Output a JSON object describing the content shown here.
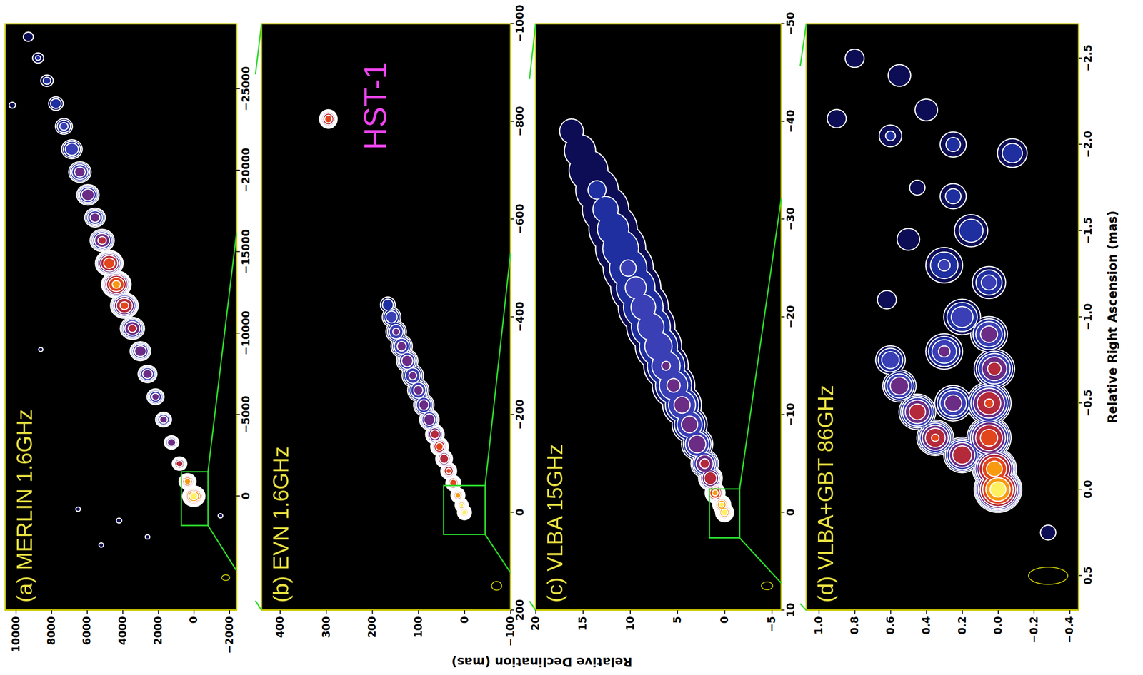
{
  "figure": {
    "xlabel": "Relative Right Ascension (mas)",
    "ylabel": "Relative Declination (mas)"
  },
  "chart_data": [
    {
      "type": "contour",
      "title": "(a) MERLIN 1.6GHz",
      "xlim": [
        7000,
        -29000
      ],
      "xticks": [
        0,
        {
          "value": -5000,
          "label": "−5000"
        },
        {
          "value": -10000,
          "label": "−10000"
        },
        {
          "value": -15000,
          "label": "−15000"
        },
        {
          "value": -20000,
          "label": "−20000"
        },
        {
          "value": -25000,
          "label": "−25000"
        }
      ],
      "ylim": [
        -2400,
        10600
      ],
      "yticks": [
        {
          "value": -2000,
          "label": "−2000"
        },
        0,
        2000,
        4000,
        6000,
        8000,
        10000
      ],
      "components": [
        [
          0,
          0,
          600,
          1.0
        ],
        [
          -900,
          350,
          450,
          0.85
        ],
        [
          -2000,
          800,
          380,
          0.55
        ],
        [
          -3300,
          1250,
          380,
          0.45
        ],
        [
          -4700,
          1700,
          420,
          0.4
        ],
        [
          -6100,
          2150,
          450,
          0.38
        ],
        [
          -7500,
          2600,
          500,
          0.42
        ],
        [
          -8900,
          3000,
          550,
          0.45
        ],
        [
          -10300,
          3450,
          650,
          0.5
        ],
        [
          -11700,
          3900,
          750,
          0.65
        ],
        [
          -13000,
          4350,
          800,
          0.8
        ],
        [
          -14300,
          4750,
          750,
          0.7
        ],
        [
          -15700,
          5150,
          650,
          0.5
        ],
        [
          -17100,
          5550,
          550,
          0.4
        ],
        [
          -18500,
          5950,
          600,
          0.45
        ],
        [
          -19900,
          6400,
          600,
          0.4
        ],
        [
          -21300,
          6850,
          550,
          0.32
        ],
        [
          -22700,
          7300,
          450,
          0.25
        ],
        [
          -24100,
          7750,
          380,
          0.2
        ],
        [
          -25500,
          8250,
          320,
          0.15
        ],
        [
          -26900,
          8750,
          280,
          0.12
        ],
        [
          -28200,
          9300,
          250,
          0.1
        ],
        [
          1500,
          4200,
          120,
          0.05
        ],
        [
          2500,
          2600,
          100,
          0.05
        ],
        [
          1200,
          -1500,
          100,
          0.05
        ],
        [
          3000,
          5200,
          100,
          0.05
        ],
        [
          800,
          6500,
          100,
          0.05
        ],
        [
          -9000,
          8600,
          90,
          0.05
        ],
        [
          -24000,
          10200,
          150,
          0.08
        ]
      ],
      "beam": [
        5000,
        -1800,
        450,
        350
      ],
      "zoom_box": [
        1800,
        -1500,
        -800,
        700
      ]
    },
    {
      "type": "contour",
      "title": "(b) EVN 1.6GHz",
      "xlim": [
        200,
        -1000
      ],
      "xticks": [
        200,
        0,
        {
          "value": -200,
          "label": "−200"
        },
        {
          "value": -400,
          "label": "−400"
        },
        {
          "value": -600,
          "label": "−600"
        },
        {
          "value": -800,
          "label": "−800"
        },
        {
          "value": -1000,
          "label": "−1000"
        }
      ],
      "ylim": [
        -100,
        440
      ],
      "yticks": [
        {
          "value": -100,
          "label": "−100"
        },
        0,
        100,
        200,
        300,
        400
      ],
      "annotations": [
        {
          "text": "HST-1"
        }
      ],
      "components": [
        [
          0,
          0,
          14,
          1.0
        ],
        [
          -15,
          6,
          13,
          0.95
        ],
        [
          -35,
          14,
          14,
          0.85
        ],
        [
          -60,
          24,
          15,
          0.75
        ],
        [
          -85,
          34,
          16,
          0.65
        ],
        [
          -110,
          44,
          17,
          0.6
        ],
        [
          -135,
          54,
          18,
          0.7
        ],
        [
          -160,
          64,
          19,
          0.55
        ],
        [
          -190,
          76,
          20,
          0.45
        ],
        [
          -220,
          88,
          21,
          0.4
        ],
        [
          -250,
          100,
          22,
          0.38
        ],
        [
          -280,
          112,
          22,
          0.36
        ],
        [
          -310,
          124,
          22,
          0.42
        ],
        [
          -340,
          136,
          22,
          0.38
        ],
        [
          -370,
          148,
          21,
          0.35
        ],
        [
          -400,
          158,
          19,
          0.3
        ],
        [
          -425,
          166,
          15,
          0.2
        ],
        [
          -805,
          295,
          18,
          0.7
        ]
      ],
      "beam": [
        150,
        -70,
        22,
        18
      ],
      "zoom_box": [
        45,
        -55,
        -45,
        45
      ]
    },
    {
      "type": "contour",
      "title": "(c) VLBA 15GHz",
      "xlim": [
        10,
        -50
      ],
      "xticks": [
        10,
        0,
        {
          "value": -10,
          "label": "−10"
        },
        {
          "value": -20,
          "label": "−20"
        },
        {
          "value": -30,
          "label": "−30"
        },
        {
          "value": -40,
          "label": "−40"
        },
        {
          "value": -50,
          "label": "−50"
        }
      ],
      "ylim": [
        -6,
        20
      ],
      "yticks": [
        {
          "value": -5,
          "label": "−5"
        },
        0,
        5,
        10,
        15,
        20
      ],
      "components": [
        [
          0,
          0,
          0.9,
          1.0
        ],
        [
          -0.8,
          0.3,
          0.9,
          0.95
        ],
        [
          -2,
          1,
          1.0,
          0.8
        ],
        [
          -3.5,
          1.5,
          1.2,
          0.6
        ],
        [
          -5,
          2.1,
          1.4,
          0.5
        ],
        [
          -7,
          2.9,
          1.6,
          0.45
        ],
        [
          -9,
          3.7,
          1.8,
          0.4
        ],
        [
          -11,
          4.5,
          2.0,
          0.38
        ],
        [
          -13,
          5.4,
          2.2,
          0.35
        ],
        [
          -15,
          6.2,
          2.3,
          0.33
        ],
        [
          -17,
          7,
          2.4,
          0.3
        ],
        [
          -19,
          7.8,
          2.5,
          0.28
        ],
        [
          -21,
          8.6,
          2.6,
          0.26
        ],
        [
          -23,
          9.4,
          2.6,
          0.24
        ],
        [
          -25,
          10.2,
          2.6,
          0.22
        ],
        [
          -27,
          11,
          2.6,
          0.2
        ],
        [
          -29,
          11.8,
          2.5,
          0.17
        ],
        [
          -31,
          12.6,
          2.4,
          0.14
        ],
        [
          -33,
          13.5,
          2.2,
          0.12
        ],
        [
          -35,
          14.4,
          2.0,
          0.1
        ],
        [
          -37,
          15.3,
          1.6,
          0.08
        ],
        [
          -39,
          16.2,
          1.2,
          0.06
        ]
      ],
      "beam": [
        7.5,
        -4.5,
        1.2,
        0.8
      ],
      "zoom_box": [
        2.6,
        -2.4,
        -1.6,
        1.6
      ]
    },
    {
      "type": "contour",
      "title": "(d) VLBA+GBT 86GHz",
      "xlim": [
        0.7,
        -2.7
      ],
      "xticks": [
        0.5,
        {
          "value": 0,
          "label": "0.0"
        },
        {
          "value": -0.5,
          "label": "−0.5"
        },
        {
          "value": -1,
          "label": "−1.0"
        },
        {
          "value": -1.5,
          "label": "−1.5"
        },
        {
          "value": -2,
          "label": "−2.0"
        },
        {
          "value": -2.5,
          "label": "−2.5"
        }
      ],
      "ylim": [
        -0.45,
        1.07
      ],
      "yticks": [
        {
          "value": -0.4,
          "label": "−0.4"
        },
        {
          "value": -0.2,
          "label": "−0.2"
        },
        {
          "value": 0,
          "label": "0.0"
        },
        0.2,
        0.4,
        0.6,
        0.8,
        {
          "value": 1,
          "label": "1.0"
        }
      ],
      "components": [
        [
          0,
          0,
          0.13,
          1.0
        ],
        [
          -0.12,
          0.02,
          0.12,
          0.85
        ],
        [
          -0.3,
          0.05,
          0.12,
          0.7
        ],
        [
          -0.5,
          0.05,
          0.12,
          0.62
        ],
        [
          -0.7,
          0.02,
          0.11,
          0.5
        ],
        [
          -0.9,
          0.05,
          0.1,
          0.4
        ],
        [
          -0.2,
          0.2,
          0.1,
          0.6
        ],
        [
          -0.3,
          0.35,
          0.1,
          0.62
        ],
        [
          -0.45,
          0.45,
          0.1,
          0.55
        ],
        [
          -0.6,
          0.55,
          0.09,
          0.45
        ],
        [
          -0.75,
          0.6,
          0.08,
          0.3
        ],
        [
          -0.5,
          0.25,
          0.1,
          0.4
        ],
        [
          -0.8,
          0.3,
          0.1,
          0.35
        ],
        [
          -1.0,
          0.2,
          0.1,
          0.3
        ],
        [
          -1.2,
          0.05,
          0.09,
          0.25
        ],
        [
          -1.3,
          0.3,
          0.1,
          0.22
        ],
        [
          -1.5,
          0.15,
          0.09,
          0.2
        ],
        [
          -1.45,
          0.5,
          0.06,
          0.1
        ],
        [
          -1.7,
          0.25,
          0.07,
          0.15
        ],
        [
          -1.95,
          -0.08,
          0.08,
          0.18
        ],
        [
          -2.0,
          0.25,
          0.07,
          0.14
        ],
        [
          -2.05,
          0.6,
          0.06,
          0.12
        ],
        [
          -2.2,
          0.4,
          0.06,
          0.1
        ],
        [
          -2.4,
          0.55,
          0.06,
          0.08
        ],
        [
          -2.5,
          0.8,
          0.05,
          0.06
        ],
        [
          -2.15,
          0.9,
          0.05,
          0.06
        ],
        [
          -1.1,
          0.62,
          0.05,
          0.08
        ],
        [
          -1.75,
          0.45,
          0.04,
          0.06
        ],
        [
          0.25,
          -0.28,
          0.04,
          0.08
        ]
      ],
      "beam": [
        0.5,
        -0.28,
        0.22,
        0.1
      ]
    }
  ]
}
